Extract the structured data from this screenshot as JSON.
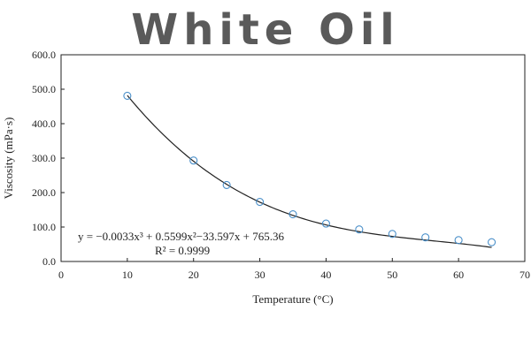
{
  "title": "White Oil",
  "chart_data": {
    "type": "scatter",
    "xlabel": "Temperature (°C)",
    "ylabel": "Viscosity (mPa·s)",
    "xlim": [
      0,
      70
    ],
    "ylim": [
      0,
      600
    ],
    "x_ticks": [
      "0",
      "10",
      "20",
      "30",
      "40",
      "50",
      "60",
      "70"
    ],
    "y_ticks": [
      "0.0",
      "100.0",
      "200.0",
      "300.0",
      "400.0",
      "500.0",
      "600.0"
    ],
    "grid": false,
    "marker_color": "#4a8fc9",
    "fit_color": "#222222",
    "series": [
      {
        "x": [
          10,
          20,
          25,
          30,
          35,
          40,
          45,
          50,
          55,
          60,
          65
        ],
        "y": [
          481,
          293,
          222,
          173,
          137,
          110,
          93,
          80,
          70,
          62,
          56
        ]
      }
    ],
    "fit": {
      "type": "cubic",
      "coefficients": [
        -0.0033,
        0.5599,
        -33.597,
        765.36
      ]
    },
    "annotation": {
      "equation": "y = −0.0033x³ + 0.5599x²−33.597x + 765.36",
      "r2": "R² = 0.9999"
    }
  }
}
